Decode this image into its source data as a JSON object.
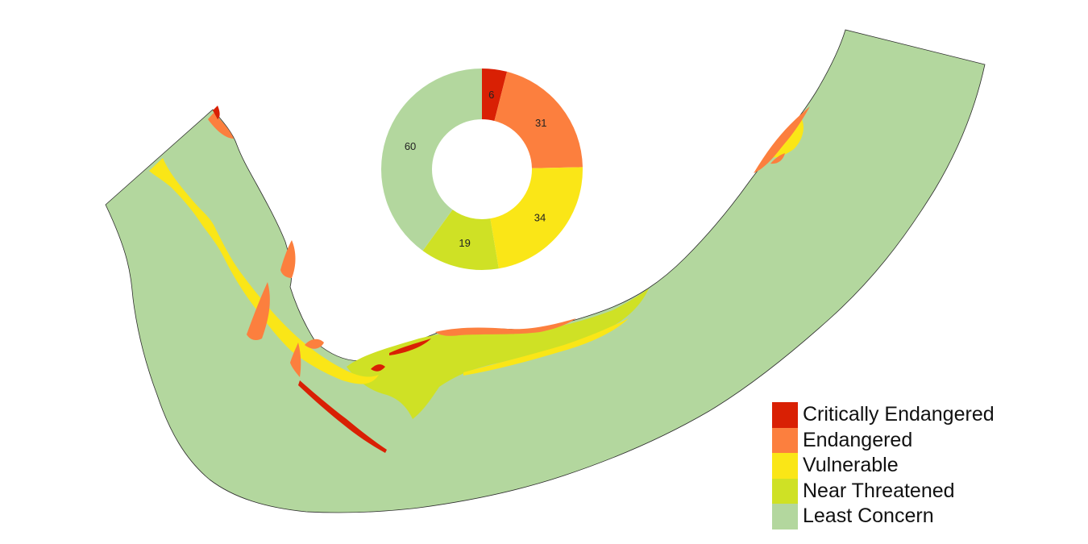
{
  "legend": {
    "items": [
      {
        "label": "Critically Endangered",
        "color": "#d92004"
      },
      {
        "label": "Endangered",
        "color": "#fc7f3e"
      },
      {
        "label": "Vulnerable",
        "color": "#fae617"
      },
      {
        "label": "Near Threatened",
        "color": "#cfe125"
      },
      {
        "label": "Least Concern",
        "color": "#b3d79e"
      }
    ]
  },
  "chart_data": {
    "type": "pie",
    "style": "donut",
    "categories": [
      "Critically Endangered",
      "Endangered",
      "Vulnerable",
      "Near Threatened",
      "Least Concern"
    ],
    "values": [
      6,
      31,
      34,
      19,
      60
    ],
    "colors": [
      "#d92004",
      "#fc7f3e",
      "#fae617",
      "#cfe125",
      "#b3d79e"
    ],
    "data_labels": [
      "6",
      "31",
      "34",
      "19",
      "60"
    ]
  }
}
